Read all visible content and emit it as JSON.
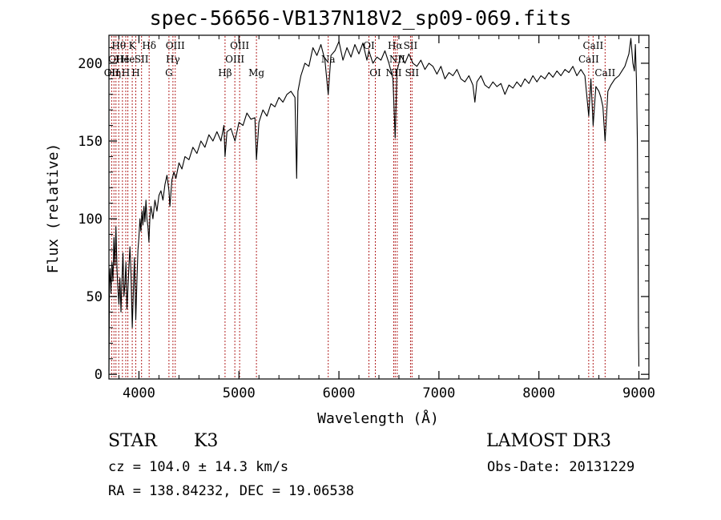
{
  "chart_data": {
    "type": "line",
    "title": "spec-56656-VB137N18V2_sp09-069.fits",
    "xlabel": "Wavelength (Å)",
    "ylabel": "Flux (relative)",
    "xlim": [
      3700,
      9100
    ],
    "ylim": [
      -3,
      218
    ],
    "x_ticks": [
      4000,
      5000,
      6000,
      7000,
      8000,
      9000
    ],
    "x_tick_labels": [
      "4000",
      "5000",
      "6000",
      "7000",
      "8000",
      "9000"
    ],
    "y_ticks": [
      0,
      50,
      100,
      150,
      200
    ],
    "y_tick_labels": [
      "0",
      "50",
      "100",
      "150",
      "200"
    ],
    "grid": false,
    "series": [
      {
        "name": "spectrum",
        "color": "#000000",
        "points": [
          [
            3700,
            2
          ],
          [
            3705,
            58
          ],
          [
            3712,
            68
          ],
          [
            3720,
            52
          ],
          [
            3730,
            72
          ],
          [
            3740,
            60
          ],
          [
            3750,
            88
          ],
          [
            3760,
            70
          ],
          [
            3770,
            95
          ],
          [
            3780,
            68
          ],
          [
            3790,
            55
          ],
          [
            3800,
            45
          ],
          [
            3810,
            62
          ],
          [
            3820,
            40
          ],
          [
            3830,
            60
          ],
          [
            3840,
            78
          ],
          [
            3850,
            50
          ],
          [
            3860,
            58
          ],
          [
            3870,
            72
          ],
          [
            3880,
            42
          ],
          [
            3890,
            55
          ],
          [
            3900,
            70
          ],
          [
            3910,
            82
          ],
          [
            3920,
            65
          ],
          [
            3933,
            30
          ],
          [
            3945,
            55
          ],
          [
            3955,
            75
          ],
          [
            3968,
            35
          ],
          [
            3980,
            60
          ],
          [
            3990,
            80
          ],
          [
            4000,
            88
          ],
          [
            4010,
            100
          ],
          [
            4020,
            92
          ],
          [
            4030,
            105
          ],
          [
            4040,
            96
          ],
          [
            4050,
            108
          ],
          [
            4060,
            98
          ],
          [
            4070,
            112
          ],
          [
            4080,
            100
          ],
          [
            4090,
            95
          ],
          [
            4100,
            85
          ],
          [
            4110,
            102
          ],
          [
            4120,
            108
          ],
          [
            4140,
            100
          ],
          [
            4160,
            112
          ],
          [
            4180,
            105
          ],
          [
            4200,
            115
          ],
          [
            4220,
            118
          ],
          [
            4240,
            112
          ],
          [
            4260,
            122
          ],
          [
            4280,
            128
          ],
          [
            4300,
            118
          ],
          [
            4310,
            108
          ],
          [
            4330,
            125
          ],
          [
            4350,
            130
          ],
          [
            4370,
            126
          ],
          [
            4400,
            136
          ],
          [
            4430,
            132
          ],
          [
            4460,
            140
          ],
          [
            4500,
            138
          ],
          [
            4540,
            146
          ],
          [
            4580,
            142
          ],
          [
            4620,
            150
          ],
          [
            4660,
            146
          ],
          [
            4700,
            154
          ],
          [
            4740,
            150
          ],
          [
            4780,
            156
          ],
          [
            4820,
            150
          ],
          [
            4850,
            160
          ],
          [
            4861,
            140
          ],
          [
            4880,
            156
          ],
          [
            4920,
            158
          ],
          [
            4960,
            150
          ],
          [
            5000,
            162
          ],
          [
            5040,
            160
          ],
          [
            5080,
            168
          ],
          [
            5120,
            164
          ],
          [
            5160,
            165
          ],
          [
            5175,
            138
          ],
          [
            5200,
            162
          ],
          [
            5240,
            170
          ],
          [
            5280,
            166
          ],
          [
            5320,
            174
          ],
          [
            5360,
            172
          ],
          [
            5400,
            178
          ],
          [
            5440,
            175
          ],
          [
            5480,
            180
          ],
          [
            5520,
            182
          ],
          [
            5560,
            178
          ],
          [
            5577,
            126
          ],
          [
            5590,
            182
          ],
          [
            5620,
            192
          ],
          [
            5660,
            200
          ],
          [
            5700,
            198
          ],
          [
            5740,
            210
          ],
          [
            5780,
            205
          ],
          [
            5820,
            212
          ],
          [
            5860,
            202
          ],
          [
            5893,
            180
          ],
          [
            5920,
            205
          ],
          [
            5960,
            208
          ],
          [
            6000,
            214
          ],
          [
            6040,
            202
          ],
          [
            6080,
            210
          ],
          [
            6120,
            204
          ],
          [
            6160,
            212
          ],
          [
            6200,
            206
          ],
          [
            6240,
            213
          ],
          [
            6280,
            202
          ],
          [
            6300,
            208
          ],
          [
            6340,
            200
          ],
          [
            6380,
            204
          ],
          [
            6420,
            202
          ],
          [
            6460,
            208
          ],
          [
            6500,
            200
          ],
          [
            6540,
            190
          ],
          [
            6563,
            152
          ],
          [
            6580,
            195
          ],
          [
            6620,
            205
          ],
          [
            6660,
            200
          ],
          [
            6700,
            206
          ],
          [
            6740,
            200
          ],
          [
            6780,
            198
          ],
          [
            6820,
            202
          ],
          [
            6860,
            196
          ],
          [
            6900,
            200
          ],
          [
            6940,
            198
          ],
          [
            6980,
            193
          ],
          [
            7020,
            198
          ],
          [
            7060,
            190
          ],
          [
            7100,
            194
          ],
          [
            7140,
            192
          ],
          [
            7180,
            196
          ],
          [
            7220,
            190
          ],
          [
            7260,
            188
          ],
          [
            7300,
            192
          ],
          [
            7340,
            186
          ],
          [
            7360,
            175
          ],
          [
            7380,
            188
          ],
          [
            7420,
            192
          ],
          [
            7460,
            186
          ],
          [
            7500,
            184
          ],
          [
            7540,
            188
          ],
          [
            7580,
            185
          ],
          [
            7620,
            187
          ],
          [
            7660,
            180
          ],
          [
            7700,
            186
          ],
          [
            7740,
            184
          ],
          [
            7780,
            188
          ],
          [
            7820,
            185
          ],
          [
            7860,
            190
          ],
          [
            7900,
            187
          ],
          [
            7940,
            192
          ],
          [
            7980,
            188
          ],
          [
            8020,
            192
          ],
          [
            8060,
            190
          ],
          [
            8100,
            194
          ],
          [
            8140,
            191
          ],
          [
            8180,
            195
          ],
          [
            8220,
            192
          ],
          [
            8260,
            196
          ],
          [
            8300,
            194
          ],
          [
            8340,
            198
          ],
          [
            8380,
            192
          ],
          [
            8420,
            196
          ],
          [
            8460,
            192
          ],
          [
            8498,
            166
          ],
          [
            8520,
            190
          ],
          [
            8542,
            160
          ],
          [
            8570,
            185
          ],
          [
            8600,
            182
          ],
          [
            8620,
            178
          ],
          [
            8640,
            172
          ],
          [
            8662,
            150
          ],
          [
            8690,
            182
          ],
          [
            8720,
            186
          ],
          [
            8760,
            190
          ],
          [
            8800,
            192
          ],
          [
            8830,
            195
          ],
          [
            8860,
            198
          ],
          [
            8880,
            202
          ],
          [
            8900,
            206
          ],
          [
            8920,
            216
          ],
          [
            8940,
            200
          ],
          [
            8955,
            195
          ],
          [
            8965,
            212
          ],
          [
            8975,
            190
          ],
          [
            8985,
            150
          ],
          [
            8990,
            100
          ],
          [
            8995,
            30
          ],
          [
            9000,
            5
          ]
        ]
      }
    ],
    "line_markers": [
      {
        "wavelength": 3727,
        "row": 2,
        "label": "OII"
      },
      {
        "wavelength": 3750,
        "row": 2,
        "label": "Hη"
      },
      {
        "wavelength": 3770,
        "row": 1,
        "label": "OII"
      },
      {
        "wavelength": 3798,
        "row": 0,
        "label": "Hθ"
      },
      {
        "wavelength": 3835,
        "row": 1,
        "label": "He"
      },
      {
        "wavelength": 3868,
        "row": 2,
        "label": "H"
      },
      {
        "wavelength": 3889,
        "row": 1,
        "label": "He"
      },
      {
        "wavelength": 3933,
        "row": 0,
        "label": "K"
      },
      {
        "wavelength": 3968,
        "row": 2,
        "label": "H"
      },
      {
        "wavelength": 4026,
        "row": 1,
        "label": "SII"
      },
      {
        "wavelength": 4102,
        "row": 0,
        "label": "Hδ"
      },
      {
        "wavelength": 4300,
        "row": 2,
        "label": "G"
      },
      {
        "wavelength": 4340,
        "row": 1,
        "label": "Hγ"
      },
      {
        "wavelength": 4363,
        "row": 0,
        "label": "OIII"
      },
      {
        "wavelength": 4861,
        "row": 2,
        "label": "Hβ"
      },
      {
        "wavelength": 4959,
        "row": 1,
        "label": "OIII"
      },
      {
        "wavelength": 5007,
        "row": 0,
        "label": "OIII"
      },
      {
        "wavelength": 5175,
        "row": 2,
        "label": "Mg"
      },
      {
        "wavelength": 5893,
        "row": 1,
        "label": "Na"
      },
      {
        "wavelength": 6300,
        "row": 0,
        "label": "OI"
      },
      {
        "wavelength": 6364,
        "row": 2,
        "label": "OI"
      },
      {
        "wavelength": 6548,
        "row": 2,
        "label": "NII"
      },
      {
        "wavelength": 6563,
        "row": 0,
        "label": "Hα"
      },
      {
        "wavelength": 6583,
        "row": 1,
        "label": "NII"
      },
      {
        "wavelength": 6716,
        "row": 0,
        "label": "SII"
      },
      {
        "wavelength": 6731,
        "row": 2,
        "label": "SII"
      },
      {
        "wavelength": 8498,
        "row": 1,
        "label": "CaII"
      },
      {
        "wavelength": 8542,
        "row": 0,
        "label": "CaII"
      },
      {
        "wavelength": 8662,
        "row": 2,
        "label": "CaII"
      }
    ]
  },
  "info": {
    "object_class": "STAR",
    "subclass": "K3",
    "survey": "LAMOST DR3",
    "redshift": "cz = 104.0 ± 14.3 km/s",
    "obs_date": "Obs-Date: 20131229",
    "coords": "RA = 138.84232, DEC =  19.06538"
  },
  "colors": {
    "spectrum": "#000000",
    "marker_line": "#b22222",
    "axis": "#000000"
  }
}
